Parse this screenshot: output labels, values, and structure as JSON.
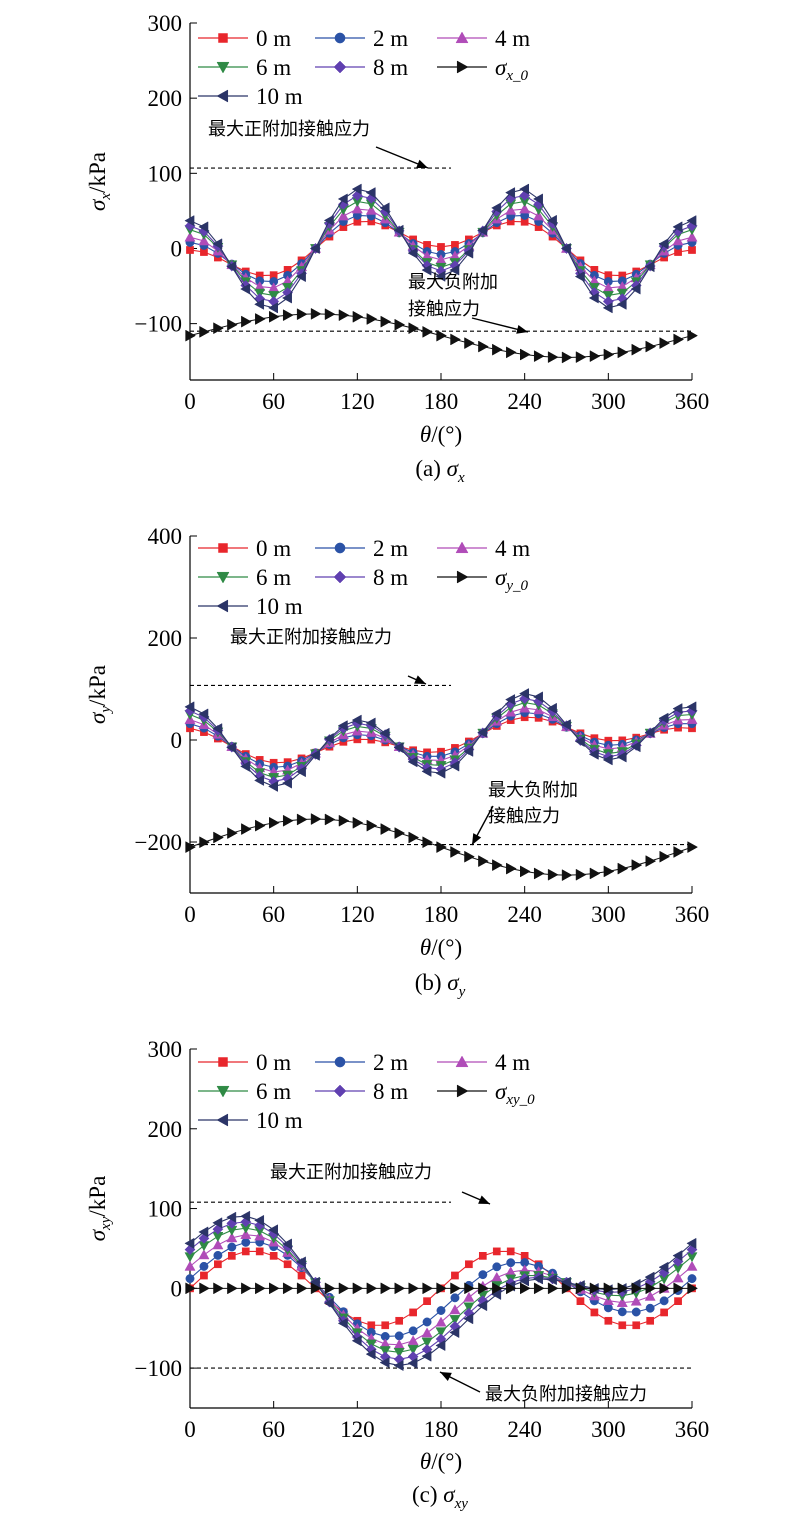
{
  "legend": {
    "m0": "0 m",
    "m2": "2 m",
    "m4": "4 m",
    "m6": "6 m",
    "m8": "8 m",
    "m10": "10 m"
  },
  "colors": {
    "m0": "#e8262c",
    "m2": "#2a52a6",
    "m4": "#b04cb8",
    "m6": "#2f8a45",
    "m8": "#6040b0",
    "m10": "#2b3467",
    "base": "#111111"
  },
  "markers": {
    "m0": "square",
    "m2": "circle",
    "m4": "triangle-up",
    "m6": "triangle-down",
    "m8": "diamond",
    "m10": "triangle-left",
    "base": "triangle-right"
  },
  "annotations": {
    "max_pos": "最大正附加接触应力",
    "max_neg": "最大负附加接触应力",
    "max_neg_line1": "最大负附加",
    "max_neg_line2": "接触应力"
  },
  "chart_data": [
    {
      "type": "line",
      "panel": "a",
      "caption_prefix": "(a) ",
      "caption_symbol": "σ",
      "caption_sub": "x",
      "xlabel_symbol": "θ",
      "xlabel_unit": "/(°)",
      "ylabel_symbol": "σ",
      "ylabel_sub": "x",
      "ylabel_unit": "/kPa",
      "xlim": [
        0,
        360
      ],
      "ylim": [
        -175,
        300
      ],
      "xticks": [
        0,
        60,
        120,
        180,
        240,
        300,
        360
      ],
      "xtick_labels": [
        "0",
        "60",
        "120",
        "180",
        "240",
        "300",
        "360"
      ],
      "yticks": [
        -100,
        0,
        100,
        200,
        300
      ],
      "ytick_labels": [
        "−100",
        "0",
        "100",
        "200",
        "300"
      ],
      "base_label_symbol": "σ",
      "base_label_sub": "x_0",
      "series_model": "y = a + b·cos((θ − c)·k) + d·cos(θ − e)",
      "series": [
        {
          "key": "m0",
          "name": "0 m",
          "a": 0,
          "b": 23,
          "c": 0,
          "k": 3,
          "d": 25,
          "e": 180
        },
        {
          "key": "m2",
          "name": "2 m",
          "a": 0,
          "b": 32,
          "c": 0,
          "k": 3,
          "d": 24,
          "e": 180
        },
        {
          "key": "m4",
          "name": "4 m",
          "a": 0,
          "b": 40,
          "c": 0,
          "k": 3,
          "d": 25,
          "e": 180
        },
        {
          "key": "m6",
          "name": "6 m",
          "a": 0,
          "b": 50,
          "c": 0,
          "k": 3,
          "d": 25,
          "e": 180
        },
        {
          "key": "m8",
          "name": "8 m",
          "a": 0,
          "b": 57,
          "c": 0,
          "k": 3,
          "d": 27,
          "e": 180
        },
        {
          "key": "m10",
          "name": "10 m",
          "a": 0,
          "b": 65,
          "c": 0,
          "k": 3,
          "d": 28,
          "e": 180
        }
      ],
      "base_series": {
        "a": -116,
        "b": 29,
        "c": 90
      },
      "ref_lines": [
        {
          "y": 107,
          "x_from": 0,
          "x_to": 180
        },
        {
          "y": -110,
          "x_from": 0,
          "x_to": 360
        }
      ]
    },
    {
      "type": "line",
      "panel": "b",
      "caption_prefix": "(b) ",
      "caption_symbol": "σ",
      "caption_sub": "y",
      "xlabel_symbol": "θ",
      "xlabel_unit": "/(°)",
      "ylabel_symbol": "σ",
      "ylabel_sub": "y",
      "ylabel_unit": "/kPa",
      "xlim": [
        0,
        360
      ],
      "ylim": [
        -300,
        400
      ],
      "xticks": [
        0,
        60,
        120,
        180,
        240,
        300,
        360
      ],
      "xtick_labels": [
        "0",
        "60",
        "120",
        "180",
        "240",
        "300",
        "360"
      ],
      "yticks": [
        -200,
        0,
        200,
        400
      ],
      "ytick_labels": [
        "−200",
        "0",
        "200",
        "400"
      ],
      "base_label_symbol": "σ",
      "base_label_sub": "y_0",
      "series_model": "y = a + b·cos((θ − c)·k) + d·cos(θ − e)",
      "series": [
        {
          "key": "m0",
          "name": "0 m",
          "a": 0,
          "b": 23,
          "c": 0,
          "k": 3,
          "d": 25,
          "e": 270
        },
        {
          "key": "m2",
          "name": "2 m",
          "a": 0,
          "b": 32,
          "c": 0,
          "k": 3,
          "d": 25,
          "e": 270
        },
        {
          "key": "m4",
          "name": "4 m",
          "a": 0,
          "b": 40,
          "c": 0,
          "k": 3,
          "d": 26,
          "e": 270
        },
        {
          "key": "m6",
          "name": "6 m",
          "a": 0,
          "b": 50,
          "c": 0,
          "k": 3,
          "d": 27,
          "e": 270
        },
        {
          "key": "m8",
          "name": "8 m",
          "a": 0,
          "b": 57,
          "c": 0,
          "k": 3,
          "d": 28,
          "e": 270
        },
        {
          "key": "m10",
          "name": "10 m",
          "a": 0,
          "b": 65,
          "c": 0,
          "k": 3,
          "d": 30,
          "e": 270
        }
      ],
      "base_series": {
        "a": -210,
        "b": 55,
        "c": 90
      },
      "ref_lines": [
        {
          "y": 107,
          "x_from": 0,
          "x_to": 180
        },
        {
          "y": -205,
          "x_from": 0,
          "x_to": 360
        }
      ]
    },
    {
      "type": "line",
      "panel": "c",
      "caption_prefix": "(c) ",
      "caption_symbol": "σ",
      "caption_sub": "xy",
      "xlabel_symbol": "θ",
      "xlabel_unit": "/(°)",
      "ylabel_symbol": "σ",
      "ylabel_sub": "xy",
      "ylabel_unit": "/kPa",
      "xlim": [
        0,
        360
      ],
      "ylim": [
        -150,
        300
      ],
      "xticks": [
        0,
        60,
        120,
        180,
        240,
        300,
        360
      ],
      "xtick_labels": [
        "0",
        "60",
        "120",
        "180",
        "240",
        "300",
        "360"
      ],
      "yticks": [
        -100,
        0,
        100,
        200,
        300
      ],
      "ytick_labels": [
        "−100",
        "0",
        "100",
        "200",
        "300"
      ],
      "base_label_symbol": "σ",
      "base_label_sub": "xy_0",
      "series_model": "y = a + b·cos((θ − c)·k) + d·cos(θ − e)",
      "series": [
        {
          "key": "m0",
          "name": "0 m",
          "a": 0,
          "b": 47,
          "c": 45,
          "k": 2,
          "d": 0,
          "e": 0
        },
        {
          "key": "m2",
          "name": "2 m",
          "a": 0,
          "b": 45,
          "c": 230,
          "k": 2,
          "d": 20,
          "e": 0
        },
        {
          "key": "m4",
          "name": "4 m",
          "a": 0,
          "b": 43,
          "c": 230,
          "k": 2,
          "d": 35,
          "e": 0
        },
        {
          "key": "m6",
          "name": "6 m",
          "a": 0,
          "b": 42,
          "c": 230,
          "k": 2,
          "d": 47,
          "e": 0
        },
        {
          "key": "m8",
          "name": "8 m",
          "a": 0,
          "b": 43,
          "c": 230,
          "k": 2,
          "d": 56,
          "e": 0
        },
        {
          "key": "m10",
          "name": "10 m",
          "a": 0,
          "b": 44,
          "c": 230,
          "k": 2,
          "d": 64,
          "e": 0
        }
      ],
      "base_series": {
        "a": 0,
        "b": 0,
        "c": 0
      },
      "ref_lines": [
        {
          "y": 108,
          "x_from": 0,
          "x_to": 180
        },
        {
          "y": -100,
          "x_from": 0,
          "x_to": 360
        }
      ]
    }
  ]
}
